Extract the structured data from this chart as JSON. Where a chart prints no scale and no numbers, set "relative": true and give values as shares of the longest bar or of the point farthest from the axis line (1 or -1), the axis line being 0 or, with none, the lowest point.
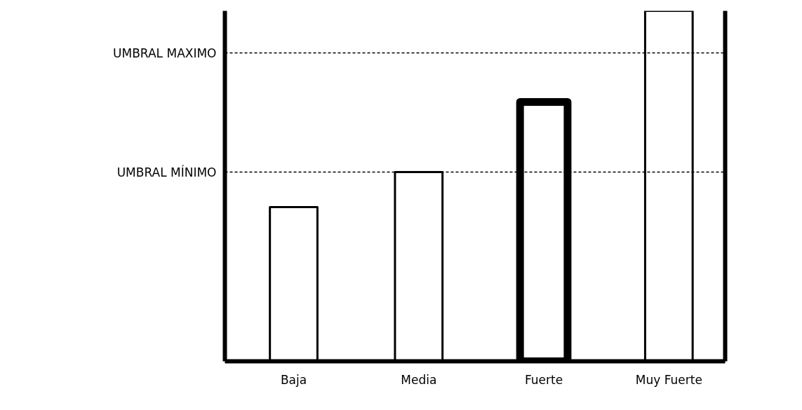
{
  "chart_data": {
    "type": "bar",
    "relative": true,
    "categories": [
      "Baja",
      "Media",
      "Fuerte",
      "Muy Fuerte"
    ],
    "series": [
      {
        "color": "#ffffff",
        "values": [
          0.44,
          0.54,
          0.74,
          1.0
        ]
      }
    ],
    "ref_lines": [
      {
        "axis": "y",
        "value": 0.88,
        "label": "UMBRAL MAXIMO",
        "line_style": "dashed"
      },
      {
        "axis": "y",
        "value": 0.54,
        "label": "UMBRAL MÍNIMO",
        "line_style": "dashed"
      }
    ],
    "grid": false,
    "legend": false
  }
}
